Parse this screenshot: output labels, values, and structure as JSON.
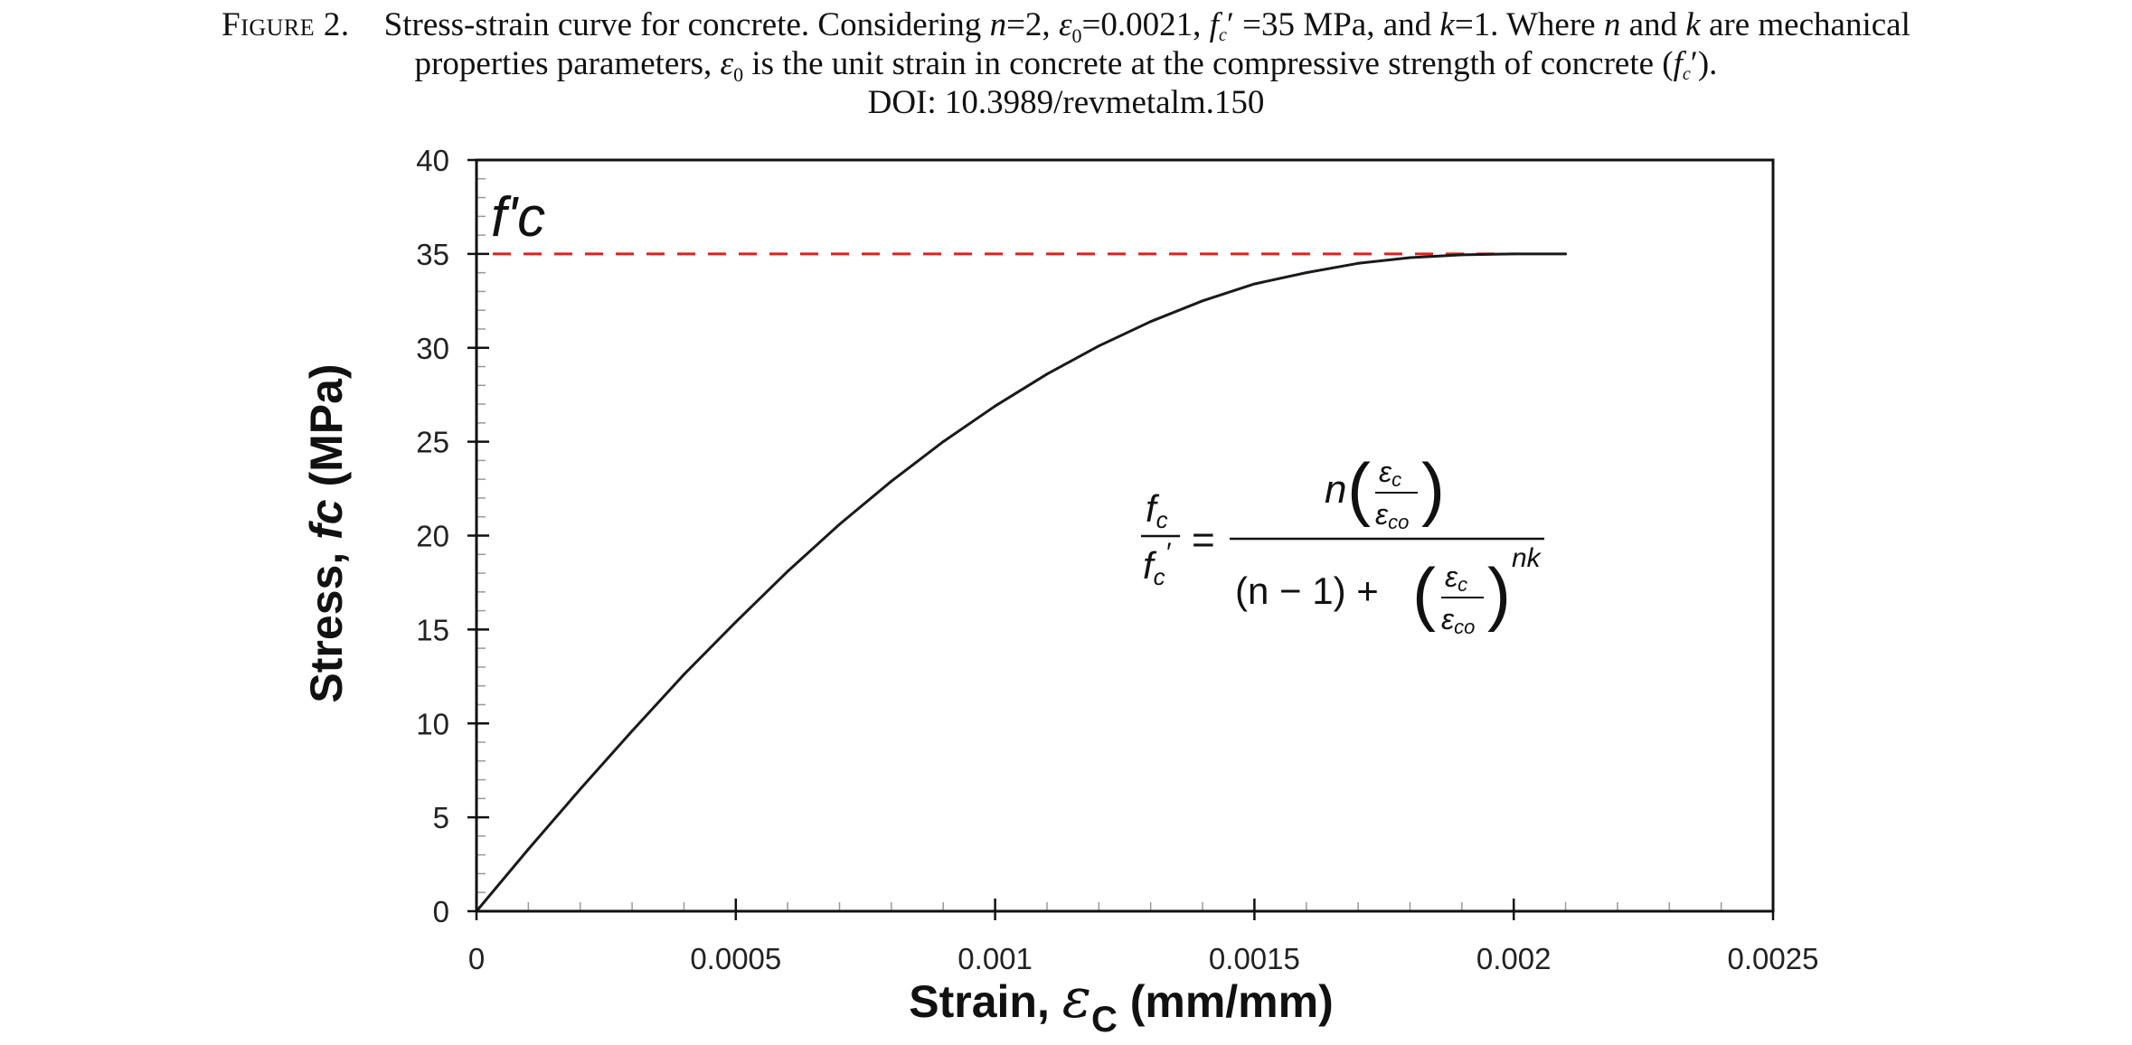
{
  "caption": {
    "label": "Figure 2.",
    "l1_a": "Stress-strain curve for concrete. Considering ",
    "l1_n": "n",
    "l1_b": "=2, ",
    "l1_eps": "ε",
    "l1_eps_sub": "0",
    "l1_c": "=0.0021, ",
    "l1_f": "f",
    "l1_f_sub": "c",
    "l1_prime": "′",
    "l1_d": " =35 MPa, and ",
    "l1_k": "k",
    "l1_e": "=1. Where ",
    "l1_n2": "n",
    "l1_and": " and ",
    "l1_k2": "k",
    "l1_f2": " are mechanical",
    "l2_a": "properties parameters, ",
    "l2_eps": "ε",
    "l2_eps_sub": "0",
    "l2_b": " is the unit strain in concrete at the compressive strength of concrete (",
    "l2_f": "f",
    "l2_f_sub": "c",
    "l2_prime": "′",
    "l2_c": ").",
    "doi": "DOI: 10.3989/revmetalm.150"
  },
  "chart_data": {
    "type": "line",
    "xlim": [
      0,
      0.0025
    ],
    "ylim": [
      0,
      40
    ],
    "x_ticks": [
      "0",
      "0.0005",
      "0.001",
      "0.0015",
      "0.002",
      "0.0025"
    ],
    "y_ticks": [
      "0",
      "5",
      "10",
      "15",
      "20",
      "25",
      "30",
      "35",
      "40"
    ],
    "xlabel_prefix": "Strain, ",
    "xlabel_symbol": "ε",
    "xlabel_sub": "C",
    "xlabel_suffix": " (mm/mm)",
    "ylabel_prefix": "Stress, ",
    "ylabel_symbol": "fc",
    "ylabel_suffix": " (MPa)",
    "series": [
      {
        "color": "#1a1a1a",
        "x": [
          0,
          0.0001,
          0.0002,
          0.0003,
          0.0004,
          0.0005,
          0.0006,
          0.0007,
          0.0008,
          0.0009,
          0.001,
          0.0011,
          0.0012,
          0.0013,
          0.0014,
          0.0015,
          0.0016,
          0.0017,
          0.0018,
          0.0019,
          0.002,
          0.0021
        ],
        "y": [
          0,
          3.3,
          6.5,
          9.6,
          12.6,
          15.4,
          18.1,
          20.6,
          22.9,
          25.0,
          26.9,
          28.6,
          30.1,
          31.4,
          32.5,
          33.4,
          34.0,
          34.5,
          34.8,
          34.95,
          35.0,
          35.0
        ]
      }
    ],
    "reference_line": {
      "y": 35,
      "color": "#e0201e",
      "style": "dashed",
      "label": "f'c"
    },
    "equation": {
      "lhs_num": "f",
      "lhs_num_sub": "c",
      "lhs_den": "f",
      "lhs_den_sub": "c",
      "lhs_den_prime": "′",
      "equals": "=",
      "rhs_num_n": "n",
      "eps": "ε",
      "eps_c_sub": "c",
      "eps_co_sub": "co",
      "rhs_den_a": "(n − 1) + ",
      "exponent": "nk"
    }
  }
}
